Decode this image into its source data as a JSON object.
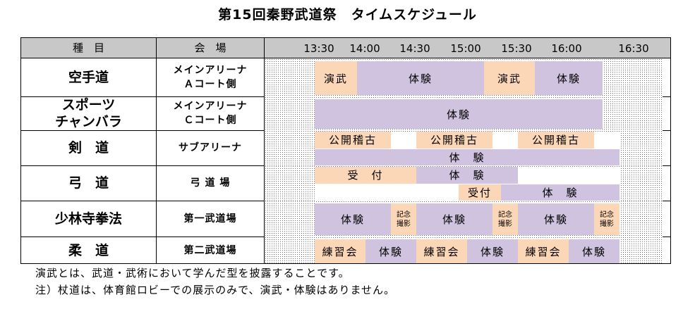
{
  "title": "第15回秦野武道祭　タイムスケジュール",
  "header": {
    "col_event": "種　目",
    "col_venue": "会　場",
    "times": [
      "13:30",
      "14:00",
      "14:30",
      "15:00",
      "15:30",
      "16:00",
      "16:30"
    ]
  },
  "rows": [
    {
      "event": [
        "空手道"
      ],
      "venue": [
        "メインアリーナ",
        "Ａコート側"
      ],
      "lanes": [
        [
          {
            "label": "演武",
            "start": "13:30",
            "end": "13:55",
            "color": "orange"
          },
          {
            "label": "体験",
            "start": "13:55",
            "end": "15:10",
            "color": "purple"
          },
          {
            "label": "演武",
            "start": "15:10",
            "end": "15:40",
            "color": "orange"
          },
          {
            "label": "体験",
            "start": "15:40",
            "end": "16:20",
            "color": "purple"
          }
        ]
      ]
    },
    {
      "event": [
        "スポーツ",
        "チャンバラ"
      ],
      "venue": [
        "メインアリーナ",
        "Ｃコート側"
      ],
      "lanes": [
        [
          {
            "label": "体験",
            "start": "13:30",
            "end": "16:20",
            "color": "purple"
          }
        ]
      ]
    },
    {
      "event": [
        "剣　道"
      ],
      "venue": [
        "サブアリーナ"
      ],
      "lanes": [
        [
          {
            "label": "公開稽古",
            "start": "13:30",
            "end": "14:15",
            "color": "orange"
          },
          {
            "label": "",
            "start": "14:15",
            "end": "14:30",
            "color": "white"
          },
          {
            "label": "公開稽古",
            "start": "14:30",
            "end": "15:15",
            "color": "orange"
          },
          {
            "label": "",
            "start": "15:15",
            "end": "15:30",
            "color": "white"
          },
          {
            "label": "公開稽古",
            "start": "15:30",
            "end": "16:15",
            "color": "orange"
          },
          {
            "label": "",
            "start": "16:15",
            "end": "16:30",
            "color": "white"
          }
        ],
        [
          {
            "label": "体　験",
            "start": "13:30",
            "end": "16:30",
            "color": "purple"
          }
        ]
      ]
    },
    {
      "event": [
        "弓　道"
      ],
      "venue": [
        "弓 道 場"
      ],
      "lanes": [
        [
          {
            "label": "受　付",
            "start": "13:30",
            "end": "14:30",
            "color": "orange"
          },
          {
            "label": "体　験",
            "start": "14:30",
            "end": "15:30",
            "color": "purple"
          },
          {
            "label": "",
            "start": "15:30",
            "end": "16:30",
            "color": "white"
          }
        ],
        [
          {
            "label": "",
            "start": "13:30",
            "end": "14:55",
            "color": "white"
          },
          {
            "label": "受付",
            "start": "14:55",
            "end": "15:20",
            "color": "orange"
          },
          {
            "label": "体　験",
            "start": "15:20",
            "end": "16:30",
            "color": "purple"
          }
        ]
      ]
    },
    {
      "event": [
        "少林寺拳法"
      ],
      "venue": [
        "第一武道場"
      ],
      "lanes": [
        [
          {
            "label": "体験",
            "start": "13:30",
            "end": "14:15",
            "color": "purple"
          },
          {
            "label": "記念撮影",
            "start": "14:15",
            "end": "14:30",
            "color": "orange",
            "small": true
          },
          {
            "label": "体験",
            "start": "14:30",
            "end": "15:15",
            "color": "purple"
          },
          {
            "label": "記念撮影",
            "start": "15:15",
            "end": "15:30",
            "color": "orange",
            "small": true
          },
          {
            "label": "体験",
            "start": "15:30",
            "end": "16:15",
            "color": "purple"
          },
          {
            "label": "記念撮影",
            "start": "16:15",
            "end": "16:30",
            "color": "orange",
            "small": true
          }
        ]
      ]
    },
    {
      "event": [
        "柔　道"
      ],
      "venue": [
        "第二武道場"
      ],
      "lanes": [
        [
          {
            "label": "練習会",
            "start": "13:30",
            "end": "14:00",
            "color": "orange"
          },
          {
            "label": "体験",
            "start": "14:00",
            "end": "14:30",
            "color": "purple"
          },
          {
            "label": "練習会",
            "start": "14:30",
            "end": "15:00",
            "color": "orange"
          },
          {
            "label": "体験",
            "start": "15:00",
            "end": "15:30",
            "color": "purple"
          },
          {
            "label": "練習会",
            "start": "15:30",
            "end": "16:00",
            "color": "orange"
          },
          {
            "label": "体験",
            "start": "16:00",
            "end": "16:30",
            "color": "purple"
          }
        ]
      ]
    }
  ],
  "notes": [
    "演武とは、武道・武術において学んだ型を披露することです。",
    "注）杖道は、体育館ロビーでの展示のみで、演武・体験はありません。"
  ],
  "colors": {
    "orange": "#fbd7b8",
    "purple": "#cfc3e0",
    "white": "#ffffff",
    "header": "#c8c8c8",
    "hatch": "#6d6d6d"
  }
}
